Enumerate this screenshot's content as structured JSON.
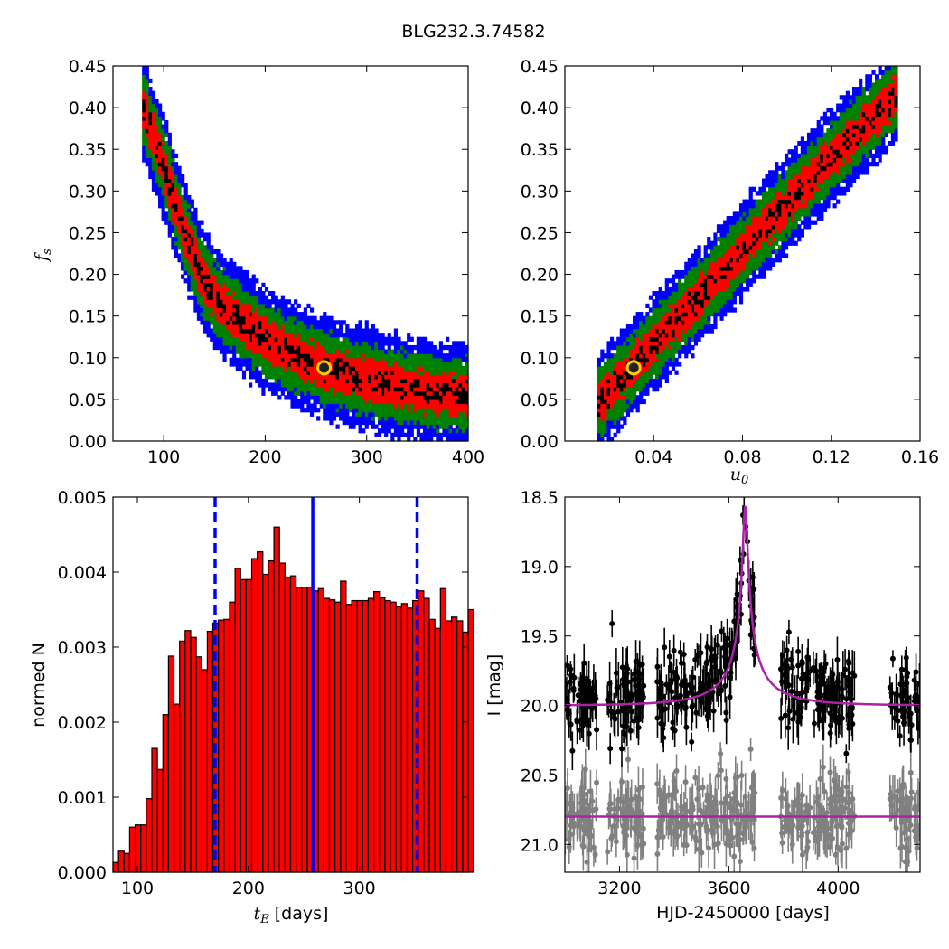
{
  "title": "BLG232.3.74582",
  "panels": {
    "tl": {
      "ylabel": "f",
      "ylabel_sub": "s",
      "xlim": [
        50,
        400
      ],
      "ylim": [
        0.0,
        0.45
      ],
      "xticks": [
        "100",
        "200",
        "300",
        "400"
      ],
      "yticks": [
        "0.00",
        "0.05",
        "0.10",
        "0.15",
        "0.20",
        "0.25",
        "0.30",
        "0.35",
        "0.40",
        "0.45"
      ]
    },
    "tr": {
      "xlabel": "u",
      "xlabel_sub": "0",
      "xlim": [
        0.0,
        0.16
      ],
      "ylim": [
        0.0,
        0.45
      ],
      "xticks": [
        "0.04",
        "0.08",
        "0.12",
        "0.16"
      ],
      "yticks": [
        "0.00",
        "0.05",
        "0.10",
        "0.15",
        "0.20",
        "0.25",
        "0.30",
        "0.35",
        "0.40",
        "0.45"
      ]
    },
    "bl": {
      "xlabel": "t",
      "xlabel_sub": "E",
      "xlabel_rest": " [days]",
      "ylabel": "normed N",
      "xlim": [
        78,
        398
      ],
      "ylim": [
        0.0,
        0.005
      ],
      "xticks": [
        "100",
        "200",
        "300"
      ],
      "yticks": [
        "0.000",
        "0.001",
        "0.002",
        "0.003",
        "0.004",
        "0.005"
      ]
    },
    "br": {
      "xlabel": "HJD-2450000 [days]",
      "ylabel": "I [mag]",
      "xlim": [
        3000,
        4300
      ],
      "ylim": [
        21.2,
        18.5
      ],
      "xticks": [
        "3200",
        "3600",
        "4000"
      ],
      "yticks": [
        "18.5",
        "19.0",
        "19.5",
        "20.0",
        "20.5",
        "21.0"
      ]
    }
  },
  "colors": {
    "c1": "#000000",
    "c2": "#ff0000",
    "c3": "#008000",
    "c4": "#0000ff",
    "bars": "#ff0000",
    "data": "#000000",
    "residual": "#808080",
    "model": "#aa22aa",
    "marker": "#ffcc00"
  },
  "chart_data": [
    {
      "type": "heatmap",
      "panel": "tl",
      "x_name": "t_E",
      "y_name": "f_s",
      "best_fit": [
        258,
        0.088
      ],
      "confidence_band_widths": [
        0.012,
        0.024,
        0.042,
        0.062
      ],
      "ridge": [
        [
          80,
          0.4
        ],
        [
          100,
          0.33
        ],
        [
          120,
          0.25
        ],
        [
          140,
          0.19
        ],
        [
          160,
          0.16
        ],
        [
          180,
          0.14
        ],
        [
          200,
          0.122
        ],
        [
          220,
          0.108
        ],
        [
          240,
          0.097
        ],
        [
          260,
          0.088
        ],
        [
          280,
          0.081
        ],
        [
          300,
          0.075
        ],
        [
          320,
          0.069
        ],
        [
          340,
          0.064
        ],
        [
          360,
          0.06
        ],
        [
          380,
          0.057
        ],
        [
          400,
          0.055
        ]
      ]
    },
    {
      "type": "heatmap",
      "panel": "tr",
      "x_name": "u_0",
      "y_name": "f_s",
      "best_fit": [
        0.031,
        0.088
      ],
      "confidence_band_widths": [
        0.012,
        0.022,
        0.04,
        0.058
      ],
      "ridge": [
        [
          0.016,
          0.048
        ],
        [
          0.03,
          0.088
        ],
        [
          0.04,
          0.117
        ],
        [
          0.06,
          0.172
        ],
        [
          0.08,
          0.23
        ],
        [
          0.1,
          0.285
        ],
        [
          0.12,
          0.34
        ],
        [
          0.14,
          0.392
        ],
        [
          0.15,
          0.42
        ]
      ]
    },
    {
      "type": "bar",
      "panel": "bl",
      "bin_width": 5,
      "bin_start": 78,
      "values": [
        0.00013,
        0.00028,
        0.00025,
        0.0006,
        0.00063,
        0.00063,
        0.00098,
        0.00165,
        0.00137,
        0.0021,
        0.00288,
        0.00224,
        0.00308,
        0.00322,
        0.00313,
        0.00287,
        0.0027,
        0.00321,
        0.00332,
        0.00336,
        0.00337,
        0.0036,
        0.00405,
        0.0039,
        0.0039,
        0.00418,
        0.00427,
        0.00397,
        0.00415,
        0.0046,
        0.00412,
        0.00393,
        0.00395,
        0.0038,
        0.0038,
        0.0038,
        0.00375,
        0.00378,
        0.00365,
        0.00363,
        0.0036,
        0.00388,
        0.00357,
        0.00362,
        0.00362,
        0.00362,
        0.00365,
        0.00374,
        0.00366,
        0.00362,
        0.0036,
        0.00354,
        0.00358,
        0.00352,
        0.00362,
        0.00375,
        0.00365,
        0.00337,
        0.00325,
        0.00378,
        0.00335,
        0.0034,
        0.00335,
        0.0032,
        0.0035
      ],
      "best_line": 258,
      "interval_lines": [
        170,
        352
      ]
    },
    {
      "type": "scatter",
      "panel": "br",
      "series": [
        {
          "role": "data",
          "baseline_mag": 19.95
        },
        {
          "role": "residual",
          "baseline_mag": 20.8
        }
      ],
      "model": {
        "t0": 3660,
        "u0": 0.031,
        "tE": 258,
        "fs": 0.088,
        "baseline_mag": 20.0
      },
      "observing_seasons": [
        [
          3000,
          3120
        ],
        [
          3150,
          3290
        ],
        [
          3330,
          3700
        ],
        [
          3790,
          4060
        ],
        [
          4190,
          4300
        ]
      ]
    }
  ]
}
